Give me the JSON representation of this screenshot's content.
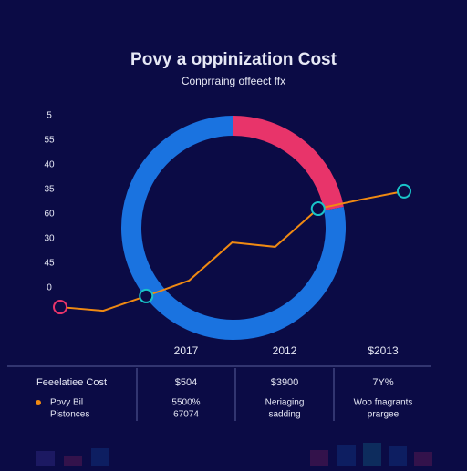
{
  "chart_data": [
    {
      "type": "line",
      "title": "Povy a oppinization Cost",
      "subtitle": "Conprraing offeect ffx",
      "categories": [
        null,
        null,
        null,
        null,
        null,
        null,
        null,
        null,
        null
      ],
      "series": [
        {
          "color": "#f08a12",
          "values": [
            -7.8,
            -9.3,
            -3.3,
            3,
            18.5,
            16.7,
            32.2,
            35.9,
            39.3
          ],
          "marker_colors": [
            "#e8346a",
            null,
            "#19c3c8",
            null,
            null,
            null,
            "#19c3c8",
            null,
            "#19c3c8"
          ]
        }
      ],
      "ylim": [
        -10,
        70
      ],
      "yticks": [
        {
          "value": 70,
          "label": "5"
        },
        {
          "value": 60,
          "label": "55"
        },
        {
          "value": 50,
          "label": "40"
        },
        {
          "value": 40,
          "label": "35"
        },
        {
          "value": 30,
          "label": "60"
        },
        {
          "value": 20,
          "label": "30"
        },
        {
          "value": 10,
          "label": "45"
        },
        0
      ],
      "grid": false
    },
    {
      "type": "donut",
      "values": [
        22,
        78
      ],
      "colors": [
        "#e8346a",
        "#1a73e0"
      ]
    }
  ],
  "table": {
    "columns": [
      "2017",
      "2012",
      "$2013"
    ],
    "rows": [
      [
        "Feeelatiee Cost",
        "$504",
        "$3900",
        "7Y%"
      ],
      [
        [
          "Povy Bil",
          "Pistonces"
        ],
        [
          "5500%",
          "67074"
        ],
        [
          "Neriaging",
          "sadding"
        ],
        [
          "Woo fnagrants",
          "prargee"
        ]
      ]
    ],
    "bullet_color": "#f08a12"
  }
}
